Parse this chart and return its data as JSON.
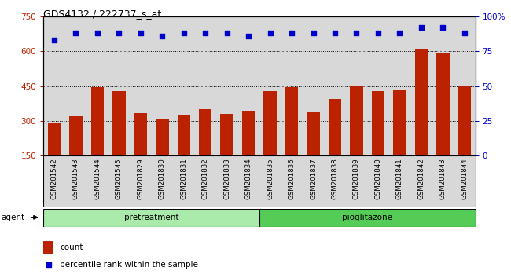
{
  "title": "GDS4132 / 222737_s_at",
  "samples": [
    "GSM201542",
    "GSM201543",
    "GSM201544",
    "GSM201545",
    "GSM201829",
    "GSM201830",
    "GSM201831",
    "GSM201832",
    "GSM201833",
    "GSM201834",
    "GSM201835",
    "GSM201836",
    "GSM201837",
    "GSM201838",
    "GSM201839",
    "GSM201840",
    "GSM201841",
    "GSM201842",
    "GSM201843",
    "GSM201844"
  ],
  "counts": [
    290,
    320,
    445,
    430,
    335,
    310,
    325,
    350,
    330,
    345,
    430,
    445,
    340,
    395,
    450,
    430,
    435,
    610,
    590,
    450
  ],
  "percentile_ranks": [
    83,
    88,
    88,
    88,
    88,
    86,
    88,
    88,
    88,
    86,
    88,
    88,
    88,
    88,
    88,
    88,
    88,
    92,
    92,
    88
  ],
  "pretreatment_count": 10,
  "pioglitazone_count": 10,
  "bar_color": "#bb2200",
  "dot_color": "#0000cc",
  "left_axis_color": "#bb2200",
  "right_axis_color": "#0000cc",
  "ylim_left": [
    150,
    750
  ],
  "ylim_right": [
    0,
    100
  ],
  "yticks_left": [
    150,
    300,
    450,
    600,
    750
  ],
  "yticks_right": [
    0,
    25,
    50,
    75,
    100
  ],
  "ytick_labels_right": [
    "0",
    "25",
    "50",
    "75",
    "100%"
  ],
  "col_bg_color": "#d8d8d8",
  "pretreatment_color": "#aaeaaa",
  "pioglitazone_color": "#55cc55",
  "legend_count_label": "count",
  "legend_percentile_label": "percentile rank within the sample"
}
